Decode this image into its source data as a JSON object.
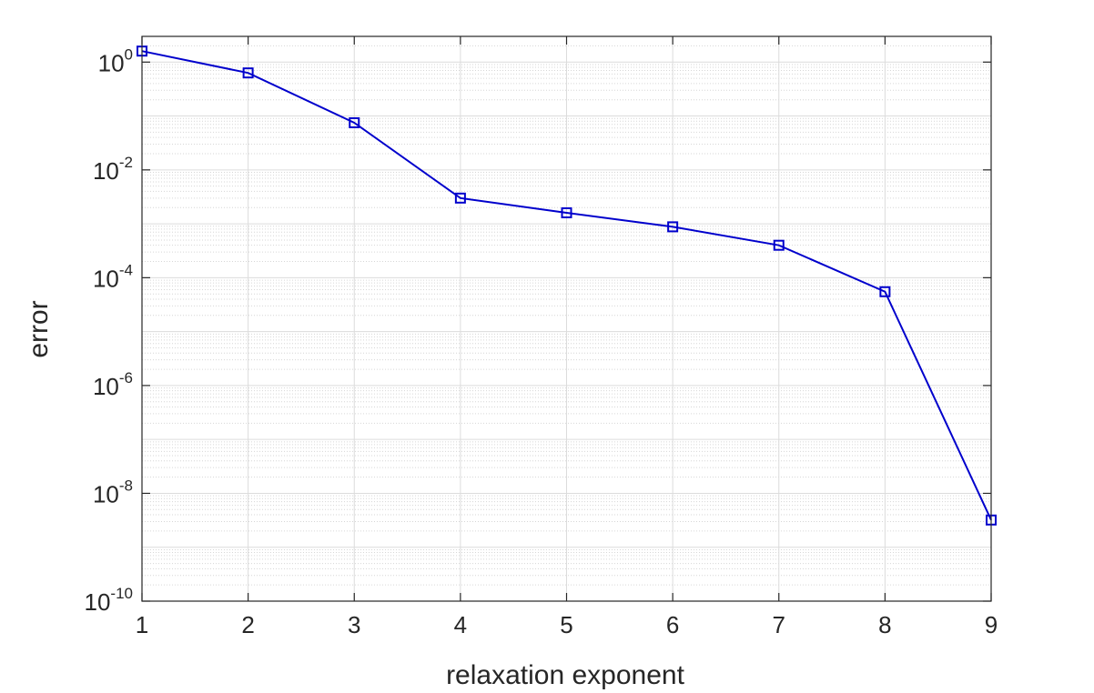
{
  "chart_data": {
    "type": "line",
    "xlabel": "relaxation exponent",
    "ylabel": "error",
    "x": [
      1,
      2,
      3,
      4,
      5,
      6,
      7,
      8,
      9
    ],
    "series": [
      {
        "values": [
          1.6,
          0.63,
          0.075,
          0.003,
          0.0016,
          0.00088,
          0.0004,
          5.5e-05,
          3.2e-09
        ],
        "color": "#0000cc",
        "marker": "square"
      }
    ],
    "xlim": [
      1,
      9
    ],
    "ylim": [
      1e-10,
      3
    ],
    "yscale": "log",
    "x_ticks": [
      "1",
      "2",
      "3",
      "4",
      "5",
      "6",
      "7",
      "8",
      "9"
    ],
    "y_ticks": [
      {
        "base": "10",
        "exp": "0"
      },
      {
        "base": "10",
        "exp": "-2"
      },
      {
        "base": "10",
        "exp": "-4"
      },
      {
        "base": "10",
        "exp": "-6"
      },
      {
        "base": "10",
        "exp": "-8"
      },
      {
        "base": "10",
        "exp": "-10"
      }
    ],
    "grid": "on",
    "minor_grid": "on"
  }
}
